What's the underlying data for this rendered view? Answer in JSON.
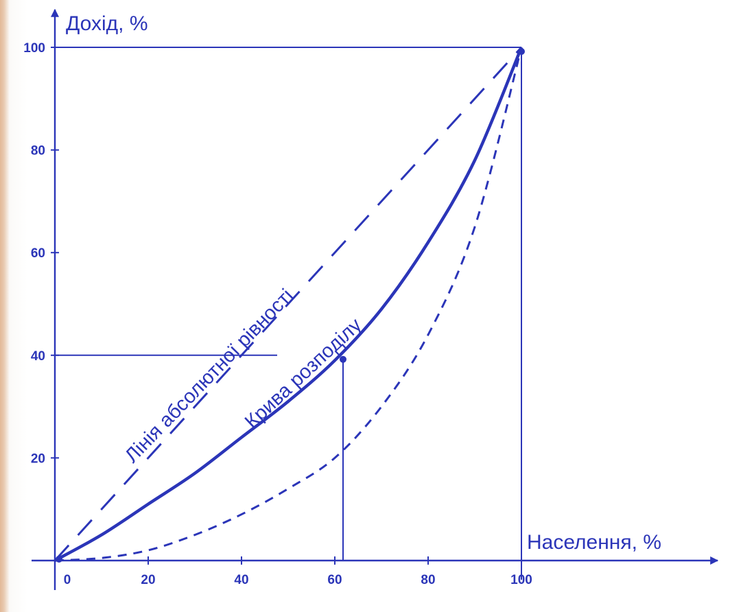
{
  "colors": {
    "ink": "#2b35b8",
    "background": "#ffffff",
    "left_edge": "#e2b897"
  },
  "chart_data": {
    "type": "line",
    "ylabel": "Дохід,  %",
    "xlabel": "Населення,  %",
    "xlim": [
      0,
      100
    ],
    "ylim": [
      0,
      100
    ],
    "x_ticks": [
      "0",
      "20",
      "40",
      "60",
      "80",
      "100"
    ],
    "y_ticks": [
      "20",
      "40",
      "60",
      "80",
      "100"
    ],
    "grid": false,
    "series": [
      {
        "name": "Лінія абсолютної рівності",
        "style": "long-dash",
        "x": [
          0,
          100
        ],
        "y": [
          0,
          100
        ]
      },
      {
        "name": "Крива розподілу",
        "style": "solid",
        "x": [
          0,
          10,
          20,
          30,
          40,
          50,
          60,
          70,
          80,
          90,
          100
        ],
        "y": [
          0,
          5,
          11,
          17,
          24,
          31,
          39,
          49,
          62,
          78,
          100
        ]
      },
      {
        "style": "short-dash",
        "x": [
          0,
          10,
          20,
          30,
          40,
          50,
          60,
          70,
          80,
          90,
          100
        ],
        "y": [
          0,
          0.5,
          2,
          5,
          9,
          14,
          20,
          30,
          44,
          65,
          100
        ]
      }
    ],
    "marked_point": {
      "x": 60,
      "y": 40
    },
    "label_texts": {
      "equality": "Лінія  абсолютної  рівності",
      "distribution": "Крива  розподілу"
    }
  }
}
